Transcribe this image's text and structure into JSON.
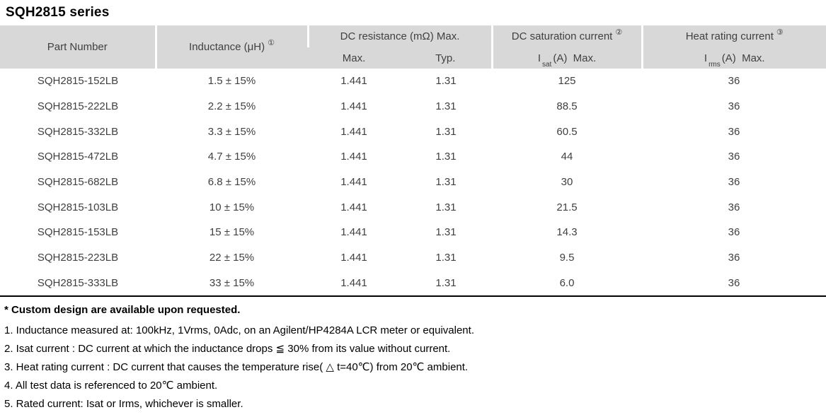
{
  "title": "SQH2815 series",
  "table": {
    "header": {
      "part_number": "Part Number",
      "inductance": "Inductance (μH)",
      "inductance_sup": "①",
      "dc_resistance": "DC resistance (mΩ) Max.",
      "dcr_max_label": "Max.",
      "dcr_typ_label": "Typ.",
      "dc_saturation": "DC saturation current",
      "dc_saturation_sup": "②",
      "isat_prefix": "I",
      "isat_sub": "sat",
      "isat_suffix": "(A)  Max.",
      "heat_rating": "Heat rating current",
      "heat_rating_sup": "③",
      "irms_prefix": "I",
      "irms_sub": "rms",
      "irms_suffix": "(A)  Max."
    },
    "rows": [
      {
        "part": "SQH2815-152LB",
        "inductance": "1.5 ± 15%",
        "dcr_max": "1.441",
        "dcr_typ": "1.31",
        "isat": "125",
        "irms": "36"
      },
      {
        "part": "SQH2815-222LB",
        "inductance": "2.2 ± 15%",
        "dcr_max": "1.441",
        "dcr_typ": "1.31",
        "isat": "88.5",
        "irms": "36"
      },
      {
        "part": "SQH2815-332LB",
        "inductance": "3.3 ± 15%",
        "dcr_max": "1.441",
        "dcr_typ": "1.31",
        "isat": "60.5",
        "irms": "36"
      },
      {
        "part": "SQH2815-472LB",
        "inductance": "4.7 ± 15%",
        "dcr_max": "1.441",
        "dcr_typ": "1.31",
        "isat": "44",
        "irms": "36"
      },
      {
        "part": "SQH2815-682LB",
        "inductance": "6.8 ± 15%",
        "dcr_max": "1.441",
        "dcr_typ": "1.31",
        "isat": "30",
        "irms": "36"
      },
      {
        "part": "SQH2815-103LB",
        "inductance": "10 ± 15%",
        "dcr_max": "1.441",
        "dcr_typ": "1.31",
        "isat": "21.5",
        "irms": "36"
      },
      {
        "part": "SQH2815-153LB",
        "inductance": "15 ± 15%",
        "dcr_max": "1.441",
        "dcr_typ": "1.31",
        "isat": "14.3",
        "irms": "36"
      },
      {
        "part": "SQH2815-223LB",
        "inductance": "22 ± 15%",
        "dcr_max": "1.441",
        "dcr_typ": "1.31",
        "isat": "9.5",
        "irms": "36"
      },
      {
        "part": "SQH2815-333LB",
        "inductance": "33 ± 15%",
        "dcr_max": "1.441",
        "dcr_typ": "1.31",
        "isat": "6.0",
        "irms": "36"
      }
    ]
  },
  "footnotes": {
    "custom": "* Custom design are available upon requested.",
    "notes": [
      "1. Inductance measured at: 100kHz, 1Vrms, 0Adc, on an Agilent/HP4284A LCR meter or equivalent.",
      "2. Isat current : DC current at which the inductance drops ≦ 30% from its value without current.",
      "3. Heat rating current : DC current that causes the temperature rise( △ t=40℃) from 20℃ ambient.",
      "4. All test data is referenced to 20℃ ambient.",
      "5. Rated current: Isat or Irms, whichever is smaller."
    ]
  },
  "colors": {
    "header_bg": "#d8d8d8",
    "table_text": "#404040",
    "separator": "#ffffff",
    "bottom_rule": "#000000"
  }
}
